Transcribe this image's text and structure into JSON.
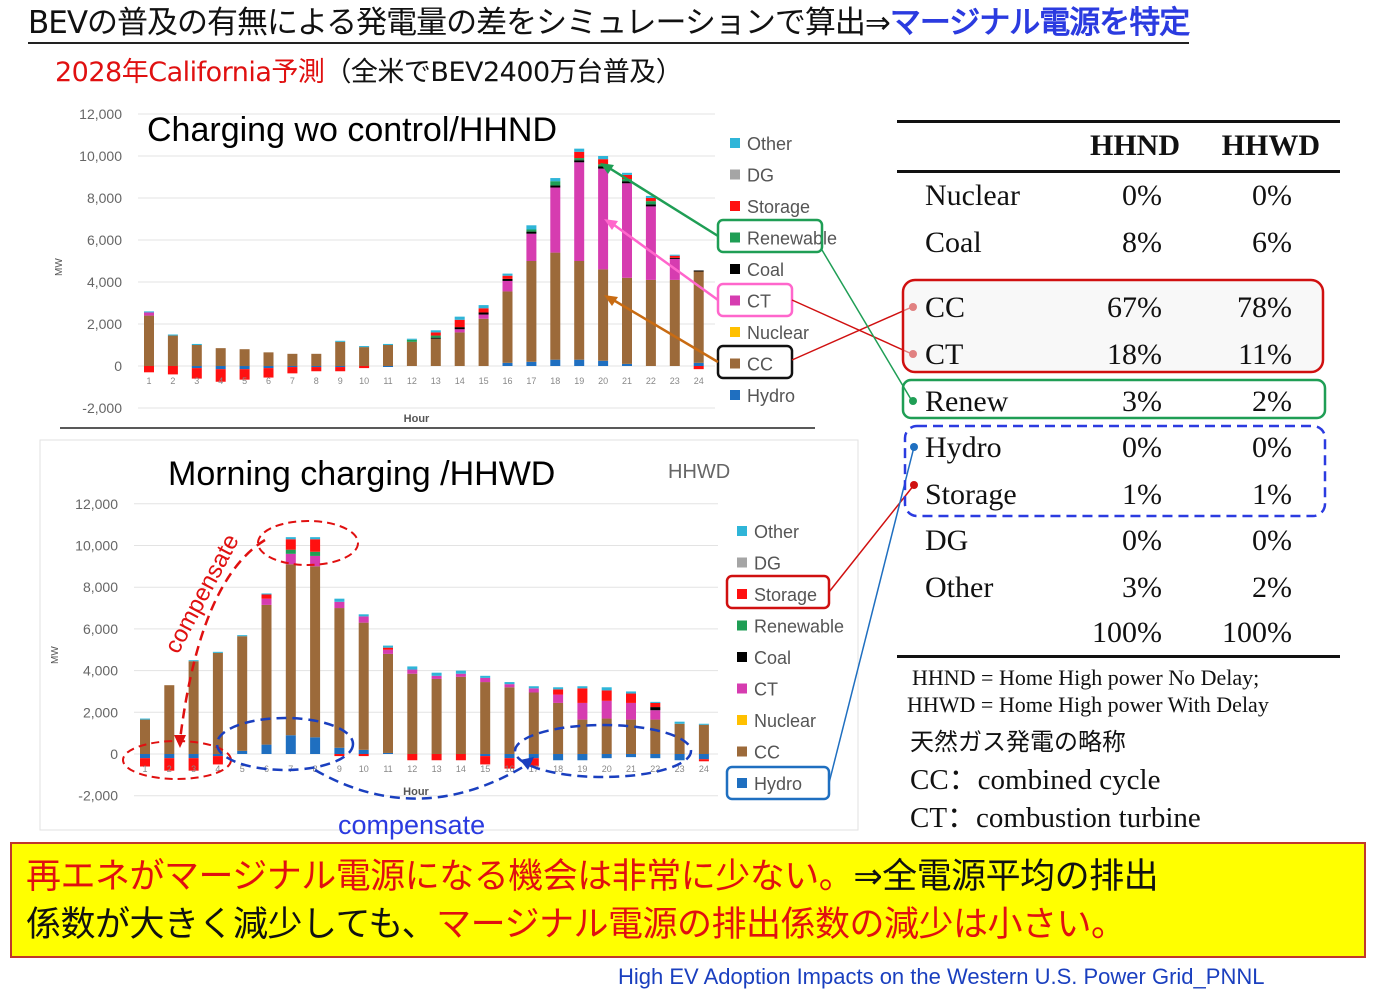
{
  "title": {
    "part1": "BEVの普及の有無による発電量の差をシミュレーションで算出⇒",
    "part2": "マージナル電源を特定"
  },
  "subtitle": {
    "part1": "2028年California予測",
    "part2": "（全米でBEV2400万台普及）"
  },
  "colors": {
    "Other": "#2fb5d8",
    "DG": "#a5a5a5",
    "Storage": "#ff1010",
    "Renewable": "#1f9e55",
    "Coal": "#000000",
    "CT": "#d63cb0",
    "Nuclear": "#ffc000",
    "CC": "#9c6a3a",
    "Hydro": "#1f6fc0"
  },
  "chart_data": [
    {
      "type": "bar",
      "stacked": true,
      "title": "Charging wo control/HHND",
      "xlabel": "Hour",
      "ylabel": "MW",
      "ylim": [
        -2000,
        12000
      ],
      "yticks": [
        "12,000",
        "10,000",
        "8,000",
        "6,000",
        "4,000",
        "2,000",
        "0",
        "-2,000"
      ],
      "categories": [
        "1",
        "2",
        "3",
        "4",
        "5",
        "6",
        "7",
        "8",
        "9",
        "10",
        "11",
        "12",
        "13",
        "14",
        "15",
        "16",
        "17",
        "18",
        "19",
        "20",
        "21",
        "22",
        "23",
        "24"
      ],
      "legend": [
        "Other",
        "DG",
        "Storage",
        "Renewable",
        "Coal",
        "CT",
        "Nuclear",
        "CC",
        "Hydro"
      ],
      "legend_position": "right",
      "grid": true,
      "series": [
        {
          "name": "Hydro",
          "values": [
            0,
            0,
            -100,
            -150,
            -150,
            -100,
            -50,
            -50,
            -50,
            0,
            -30,
            0,
            0,
            0,
            0,
            150,
            200,
            300,
            300,
            250,
            100,
            0,
            0,
            150
          ]
        },
        {
          "name": "CC",
          "values": [
            2400,
            1450,
            1000,
            850,
            800,
            650,
            580,
            580,
            1150,
            900,
            1000,
            1150,
            1300,
            1600,
            2250,
            3400,
            4800,
            5100,
            4700,
            4350,
            4100,
            4100,
            4100,
            4350
          ]
        },
        {
          "name": "Nuclear",
          "values": [
            0,
            0,
            0,
            0,
            0,
            0,
            0,
            0,
            0,
            0,
            0,
            0,
            0,
            0,
            0,
            0,
            0,
            0,
            0,
            0,
            0,
            0,
            0,
            0
          ]
        },
        {
          "name": "CT",
          "values": [
            150,
            0,
            0,
            0,
            0,
            0,
            0,
            0,
            0,
            0,
            0,
            0,
            0,
            150,
            200,
            500,
            1300,
            3100,
            4700,
            4800,
            4500,
            3500,
            1000,
            0
          ]
        },
        {
          "name": "Coal",
          "values": [
            0,
            0,
            0,
            0,
            0,
            0,
            0,
            0,
            0,
            0,
            0,
            0,
            50,
            100,
            100,
            100,
            100,
            100,
            100,
            100,
            100,
            100,
            50,
            50
          ]
        },
        {
          "name": "Renewable",
          "values": [
            0,
            0,
            0,
            0,
            0,
            0,
            0,
            0,
            0,
            0,
            0,
            100,
            100,
            0,
            0,
            0,
            100,
            200,
            100,
            100,
            100,
            150,
            0,
            0
          ]
        },
        {
          "name": "Storage",
          "values": [
            -300,
            -400,
            -500,
            -600,
            -500,
            -450,
            -300,
            -200,
            -200,
            -100,
            0,
            0,
            150,
            350,
            200,
            150,
            0,
            0,
            300,
            250,
            200,
            150,
            100,
            -150
          ]
        },
        {
          "name": "DG",
          "values": [
            0,
            0,
            0,
            0,
            0,
            0,
            0,
            0,
            0,
            0,
            0,
            0,
            0,
            0,
            0,
            0,
            0,
            0,
            0,
            0,
            0,
            0,
            0,
            0
          ]
        },
        {
          "name": "Other",
          "values": [
            50,
            50,
            50,
            0,
            0,
            0,
            0,
            0,
            50,
            50,
            50,
            50,
            100,
            150,
            150,
            100,
            200,
            150,
            150,
            150,
            100,
            100,
            50,
            0
          ]
        }
      ]
    },
    {
      "type": "bar",
      "stacked": true,
      "title": "Morning charging /HHWD",
      "corner_label": "HHWD",
      "xlabel": "Hour",
      "ylabel": "MW",
      "ylim": [
        -2000,
        12000
      ],
      "yticks": [
        "12,000",
        "10,000",
        "8,000",
        "6,000",
        "4,000",
        "2,000",
        "0",
        "-2,000"
      ],
      "categories": [
        "1",
        "2",
        "3",
        "4",
        "5",
        "6",
        "7",
        "8",
        "9",
        "10",
        "11",
        "12",
        "13",
        "14",
        "15",
        "16",
        "17",
        "18",
        "19",
        "20",
        "21",
        "22",
        "23",
        "24"
      ],
      "legend": [
        "Other",
        "DG",
        "Storage",
        "Renewable",
        "Coal",
        "CT",
        "Nuclear",
        "CC",
        "Hydro"
      ],
      "legend_position": "right",
      "grid": true,
      "annotations": [
        "compensate",
        "compensate"
      ],
      "series": [
        {
          "name": "Hydro",
          "values": [
            -200,
            -200,
            -200,
            -100,
            150,
            450,
            900,
            800,
            300,
            200,
            50,
            0,
            0,
            0,
            -100,
            -200,
            -200,
            -300,
            -300,
            -200,
            -150,
            -200,
            -300,
            -250
          ]
        },
        {
          "name": "CC",
          "values": [
            1650,
            3300,
            4450,
            4850,
            5500,
            6700,
            8200,
            8200,
            6700,
            6100,
            4750,
            3850,
            3600,
            3700,
            3450,
            3200,
            2950,
            2450,
            1650,
            1700,
            1650,
            1650,
            1450,
            1400
          ]
        },
        {
          "name": "Nuclear",
          "values": [
            0,
            0,
            0,
            0,
            0,
            0,
            0,
            0,
            0,
            0,
            0,
            0,
            0,
            0,
            0,
            0,
            0,
            0,
            0,
            0,
            0,
            0,
            0,
            0
          ]
        },
        {
          "name": "CT",
          "values": [
            0,
            0,
            0,
            0,
            0,
            300,
            500,
            500,
            300,
            300,
            200,
            200,
            150,
            150,
            200,
            150,
            200,
            400,
            800,
            850,
            800,
            450,
            0,
            0
          ]
        },
        {
          "name": "Coal",
          "values": [
            0,
            0,
            0,
            0,
            0,
            0,
            0,
            0,
            0,
            0,
            0,
            0,
            0,
            0,
            0,
            0,
            0,
            0,
            0,
            0,
            0,
            150,
            0,
            0
          ]
        },
        {
          "name": "Renewable",
          "values": [
            0,
            0,
            0,
            0,
            0,
            0,
            200,
            200,
            0,
            0,
            0,
            0,
            0,
            0,
            0,
            0,
            0,
            0,
            0,
            0,
            0,
            0,
            0,
            0
          ]
        },
        {
          "name": "Storage",
          "values": [
            -400,
            -600,
            -600,
            -400,
            0,
            200,
            500,
            600,
            -100,
            -100,
            100,
            -300,
            -300,
            -300,
            -400,
            -500,
            -400,
            250,
            700,
            500,
            450,
            200,
            0,
            -100
          ]
        },
        {
          "name": "DG",
          "values": [
            0,
            0,
            0,
            0,
            0,
            0,
            0,
            0,
            0,
            0,
            0,
            0,
            0,
            0,
            0,
            0,
            0,
            0,
            0,
            0,
            0,
            0,
            0,
            0
          ]
        },
        {
          "name": "Other",
          "values": [
            50,
            0,
            50,
            50,
            50,
            50,
            100,
            100,
            150,
            100,
            100,
            150,
            150,
            150,
            100,
            100,
            100,
            100,
            100,
            150,
            100,
            50,
            100,
            50
          ]
        }
      ]
    },
    {
      "type": "table",
      "columns": [
        "",
        "HHND",
        "HHWD"
      ],
      "rows": [
        [
          "Nuclear",
          "0%",
          "0%"
        ],
        [
          "Coal",
          "8%",
          "6%"
        ],
        [
          "CC",
          "67%",
          "78%"
        ],
        [
          "CT",
          "18%",
          "11%"
        ],
        [
          "Renew",
          "3%",
          "2%"
        ],
        [
          "Hydro",
          "0%",
          "0%"
        ],
        [
          "Storage",
          "1%",
          "1%"
        ],
        [
          "DG",
          "0%",
          "0%"
        ],
        [
          "Other",
          "3%",
          "2%"
        ],
        [
          "",
          "100%",
          "100%"
        ]
      ]
    }
  ],
  "notes": {
    "hhnd": "HHND = Home High power No Delay;",
    "hhwd": "HHWD = Home High power With Delay",
    "gas_abbrev": "天然ガス発電の略称",
    "cc": "CC：combined cycle",
    "ct": "CT：combustion turbine"
  },
  "conclusion": {
    "line1_red": "再エネがマージナル電源になる機会は非常に少ない。",
    "line1_black": "⇒全電源平均の排出",
    "line2_black": "係数が大きく減少しても、",
    "line2_red": "マージナル電源の排出係数の減少は小さい。"
  },
  "source": "High EV Adoption Impacts on the Western U.S. Power Grid_PNNL"
}
